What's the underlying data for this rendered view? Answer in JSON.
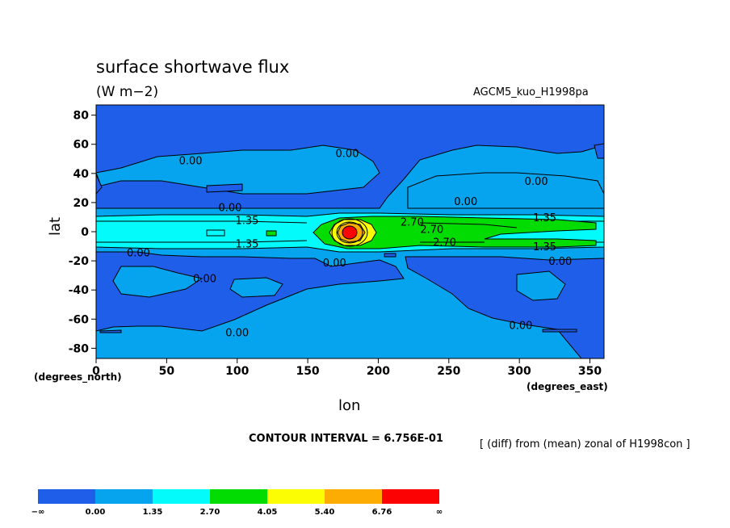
{
  "chart_data": {
    "type": "heatmap",
    "title": "surface shortwave flux",
    "units": "(W m−2)",
    "model": "AGCM5_kuo_H1998pa",
    "xlabel": "lon",
    "ylabel": "lat",
    "x_unit_label": "(degrees_east)",
    "y_unit_label": "(degrees_north)",
    "xlim": [
      0,
      360
    ],
    "ylim": [
      -87,
      87
    ],
    "x_ticks": [
      0,
      50,
      100,
      150,
      200,
      250,
      300,
      350
    ],
    "y_ticks": [
      80,
      60,
      40,
      20,
      0,
      -20,
      -40,
      -60,
      -80
    ],
    "contour_interval_text": "CONTOUR INTERVAL = 6.756E-01",
    "comparison_text": "[ (diff) from (mean) zonal of H1998con ]",
    "colorbar": {
      "colors": [
        "#1f5ee8",
        "#06a4ee",
        "#04fbfb",
        "#02dc02",
        "#fcfc02",
        "#fcac02",
        "#fc0202"
      ],
      "labels": [
        "−∞",
        "0.00",
        "1.35",
        "2.70",
        "4.05",
        "5.40",
        "6.76",
        "∞"
      ]
    },
    "contour_labels": [
      {
        "text": "0.00",
        "lon": 67,
        "lat": 49
      },
      {
        "text": "0.00",
        "lon": 178,
        "lat": 54
      },
      {
        "text": "0.00",
        "lon": 95,
        "lat": 17
      },
      {
        "text": "1.35",
        "lon": 107,
        "lat": 8
      },
      {
        "text": "1.35",
        "lon": 107,
        "lat": -8
      },
      {
        "text": "0.00",
        "lon": 30,
        "lat": -14
      },
      {
        "text": "0.00",
        "lon": 77,
        "lat": -32
      },
      {
        "text": "0.00",
        "lon": 100,
        "lat": -69
      },
      {
        "text": "0.00",
        "lon": 169,
        "lat": -21
      },
      {
        "text": "2.70",
        "lon": 224,
        "lat": 7
      },
      {
        "text": "2.70",
        "lon": 238,
        "lat": 2
      },
      {
        "text": "2.70",
        "lon": 247,
        "lat": -7
      },
      {
        "text": "0.00",
        "lon": 262,
        "lat": 21
      },
      {
        "text": "0.00",
        "lon": 312,
        "lat": 35
      },
      {
        "text": "1.35",
        "lon": 318,
        "lat": 10
      },
      {
        "text": "1.35",
        "lon": 318,
        "lat": -10
      },
      {
        "text": "0.00",
        "lon": 329,
        "lat": -20
      },
      {
        "text": "0.00",
        "lon": 301,
        "lat": -64
      }
    ]
  }
}
